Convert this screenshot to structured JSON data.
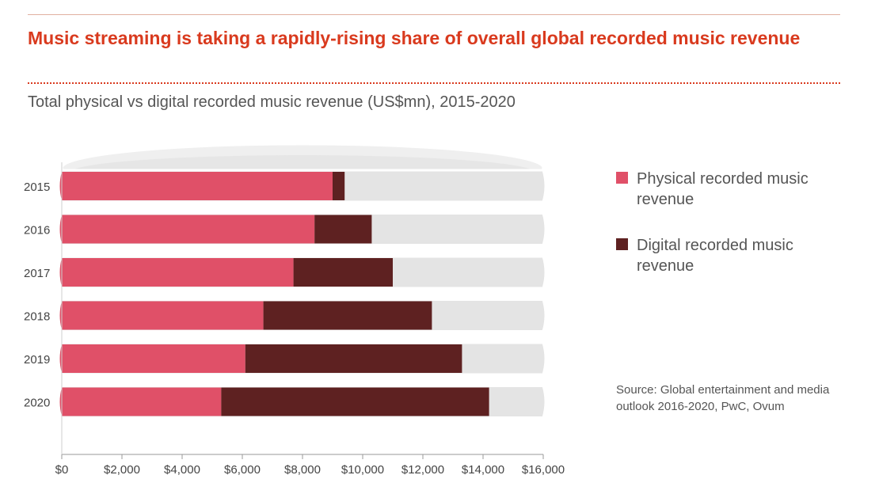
{
  "header": {
    "title": "Music streaming is taking a rapidly-rising share of overall global recorded music revenue",
    "subtitle": "Total physical vs digital recorded music revenue (US$mn), 2015-2020"
  },
  "legend": {
    "physical": "Physical recorded music revenue",
    "digital": "Digital recorded music revenue"
  },
  "source": "Source: Global entertainment and media outlook 2016-2020, PwC, Ovum",
  "colors": {
    "physical": "#e05068",
    "digital": "#5e2121",
    "ring": "#e4e4e4",
    "title": "#d93a1e",
    "text": "#555555"
  },
  "chart_data": {
    "type": "bar",
    "orientation": "horizontal",
    "stacked": true,
    "categories": [
      "2015",
      "2016",
      "2017",
      "2018",
      "2019",
      "2020"
    ],
    "series": [
      {
        "name": "Physical recorded music revenue",
        "values": [
          9000,
          8400,
          7700,
          6700,
          6100,
          5300
        ]
      },
      {
        "name": "Digital recorded music revenue",
        "values": [
          400,
          1900,
          3300,
          5600,
          7200,
          8900
        ]
      }
    ],
    "xlim": [
      0,
      16000
    ],
    "xticks": [
      "$0",
      "$2,000",
      "$4,000",
      "$6,000",
      "$8,000",
      "$10,000",
      "$12,000",
      "$14,000",
      "$16,000"
    ],
    "title": "Total physical vs digital recorded music revenue (US$mn), 2015-2020",
    "xlabel": "",
    "ylabel": ""
  }
}
